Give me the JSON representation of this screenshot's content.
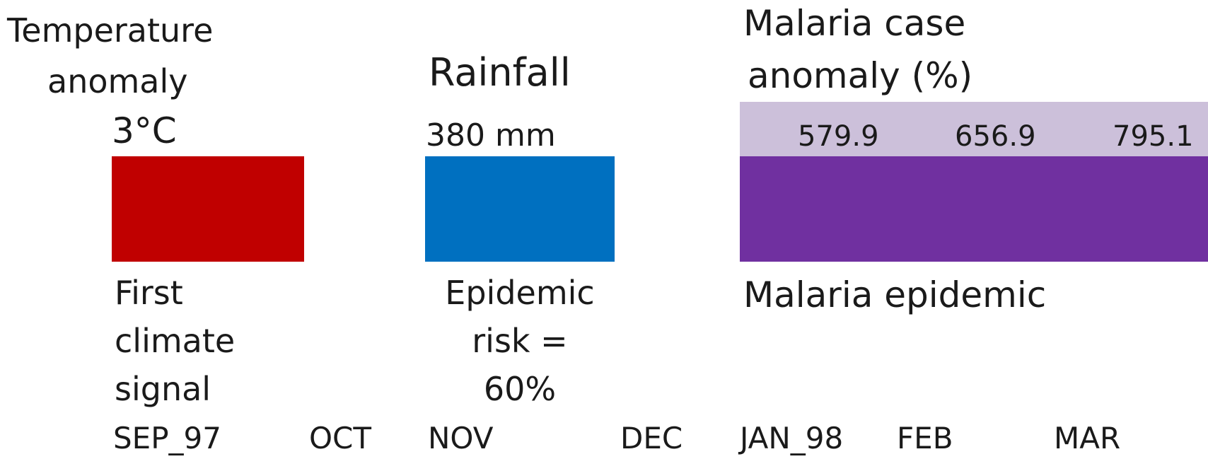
{
  "temperature": {
    "label_line1": "Temperature",
    "label_line2": "anomaly",
    "value": "3°C",
    "color": "#c00000",
    "caption": [
      "First",
      "climate",
      "signal"
    ]
  },
  "rainfall": {
    "label": "Rainfall",
    "value": "380 mm",
    "color": "#0070c0",
    "caption": [
      "Epidemic",
      "risk =",
      "60%"
    ]
  },
  "malaria": {
    "label_line1": "Malaria case",
    "label_line2": "anomaly (%)",
    "anomaly_values": [
      "579.9",
      "656.9",
      "795.1"
    ],
    "band_color": "#ccc0da",
    "color": "#7030a0",
    "caption": "Malaria epidemic"
  },
  "months": [
    "SEP_97",
    "OCT",
    "NOV",
    "DEC",
    "JAN_98",
    "FEB",
    "MAR"
  ]
}
